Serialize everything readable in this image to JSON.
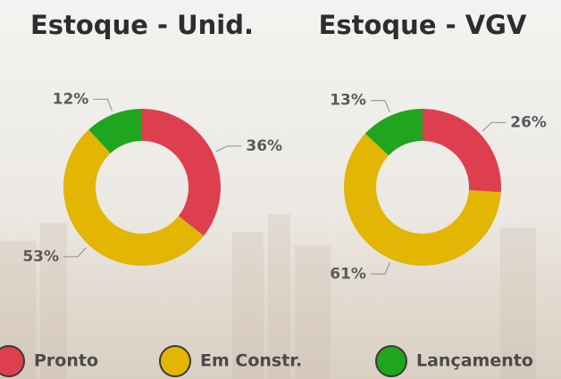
{
  "chart_data": [
    {
      "type": "pie",
      "title": "Estoque - Unid.",
      "categories": [
        "Pronto",
        "Em Constr.",
        "Lançamento"
      ],
      "values": [
        36,
        53,
        12
      ],
      "value_labels": [
        "36%",
        "53%",
        "12%"
      ],
      "colors": [
        "#de3f4f",
        "#e3b505",
        "#1fa51f"
      ]
    },
    {
      "type": "pie",
      "title": "Estoque - VGV",
      "categories": [
        "Pronto",
        "Em Constr.",
        "Lançamento"
      ],
      "values": [
        26,
        61,
        13
      ],
      "value_labels": [
        "26%",
        "61%",
        "13%"
      ],
      "colors": [
        "#de3f4f",
        "#e3b505",
        "#1fa51f"
      ]
    }
  ]
}
